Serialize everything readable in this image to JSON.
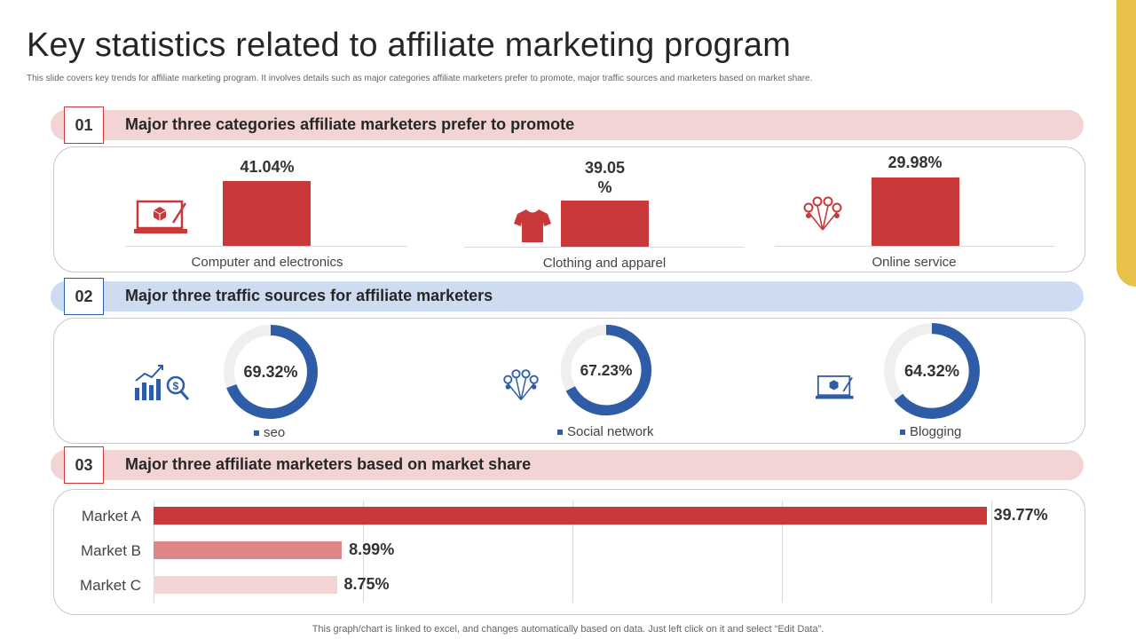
{
  "title": "Key statistics related to affiliate marketing program",
  "subtitle": "This slide covers key trends for affiliate marketing program. It involves details such as major categories affiliate marketers prefer to promote, major traffic sources and marketers based on market share.",
  "sections": [
    {
      "num": "01",
      "title": "Major three categories affiliate marketers prefer to promote"
    },
    {
      "num": "02",
      "title": "Major three traffic sources for affiliate marketers"
    },
    {
      "num": "03",
      "title": "Major three affiliate marketers based on market share"
    }
  ],
  "icons": {
    "categories": [
      "laptop-icon",
      "tshirt-icon",
      "network-icon"
    ],
    "traffic": [
      "growth-chart-icon",
      "network-icon",
      "laptop-icon"
    ]
  },
  "colors": {
    "red": "#c9393a",
    "blue": "#2e5ca6",
    "pink": "#f3d4d5",
    "light_blue": "#cddcf1",
    "gold": "#e8c14b"
  },
  "footnote": "This graph/chart is linked to excel, and changes automatically based on data. Just left click on it and select “Edit Data”.",
  "chart_data": [
    {
      "type": "bar",
      "title": "Major three categories affiliate marketers prefer to promote",
      "categories": [
        "Computer and electronics",
        "Clothing and apparel",
        "Online service"
      ],
      "values": [
        41.04,
        39.05,
        29.98
      ],
      "labels": [
        "41.04%",
        "39.05 %",
        "29.98%"
      ]
    },
    {
      "type": "pie",
      "title": "Major three traffic sources for affiliate marketers",
      "categories": [
        "seo",
        "Social network",
        "Blogging"
      ],
      "values": [
        69.32,
        67.23,
        64.32
      ],
      "labels": [
        "69.32%",
        "67.23%",
        "64.32%"
      ]
    },
    {
      "type": "bar",
      "title": "Major three affiliate marketers based on market share",
      "categories": [
        "Market A",
        "Market B",
        "Market C"
      ],
      "values": [
        39.77,
        8.99,
        8.75
      ],
      "labels": [
        "39.77%",
        "8.99%",
        "8.75%"
      ],
      "colors": [
        "#c9393a",
        "#e08587",
        "#f3d4d5"
      ]
    }
  ]
}
